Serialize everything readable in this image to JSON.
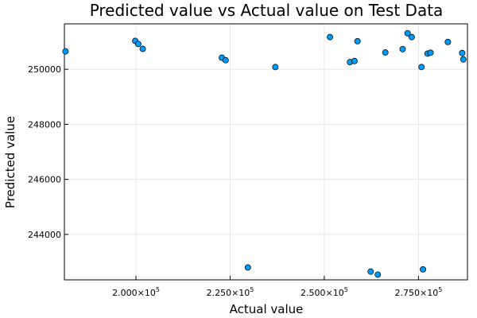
{
  "chart_data": {
    "type": "scatter",
    "title": "Predicted value vs Actual value on Test Data",
    "xlabel": "Actual value",
    "ylabel": "Predicted value",
    "xlim": [
      181000,
      288000
    ],
    "ylim": [
      242350,
      251650
    ],
    "x_ticks": [
      {
        "value": 200000,
        "mantissa": "2.000",
        "exponent": "5"
      },
      {
        "value": 225000,
        "mantissa": "2.250",
        "exponent": "5"
      },
      {
        "value": 250000,
        "mantissa": "2.500",
        "exponent": "5"
      },
      {
        "value": 275000,
        "mantissa": "2.750",
        "exponent": "5"
      }
    ],
    "y_ticks": [
      {
        "value": 244000,
        "label": "244000"
      },
      {
        "value": 246000,
        "label": "246000"
      },
      {
        "value": 248000,
        "label": "248000"
      },
      {
        "value": 250000,
        "label": "250000"
      }
    ],
    "grid": true,
    "legend": "none",
    "marker_color": "#009AFA",
    "series": [
      {
        "points": [
          {
            "x": 181300,
            "y": 250650
          },
          {
            "x": 199800,
            "y": 251030
          },
          {
            "x": 200600,
            "y": 250920
          },
          {
            "x": 201800,
            "y": 250740
          },
          {
            "x": 222800,
            "y": 250420
          },
          {
            "x": 223800,
            "y": 250330
          },
          {
            "x": 229700,
            "y": 242800
          },
          {
            "x": 237000,
            "y": 250080
          },
          {
            "x": 251500,
            "y": 251170
          },
          {
            "x": 256800,
            "y": 250260
          },
          {
            "x": 258000,
            "y": 250300
          },
          {
            "x": 258800,
            "y": 251020
          },
          {
            "x": 262300,
            "y": 242650
          },
          {
            "x": 264200,
            "y": 242540
          },
          {
            "x": 266200,
            "y": 250610
          },
          {
            "x": 270800,
            "y": 250730
          },
          {
            "x": 272100,
            "y": 251310
          },
          {
            "x": 273200,
            "y": 251170
          },
          {
            "x": 275800,
            "y": 250080
          },
          {
            "x": 276200,
            "y": 242730
          },
          {
            "x": 277400,
            "y": 250570
          },
          {
            "x": 278200,
            "y": 250600
          },
          {
            "x": 282800,
            "y": 250990
          },
          {
            "x": 286600,
            "y": 250590
          },
          {
            "x": 286900,
            "y": 250360
          }
        ]
      }
    ]
  }
}
